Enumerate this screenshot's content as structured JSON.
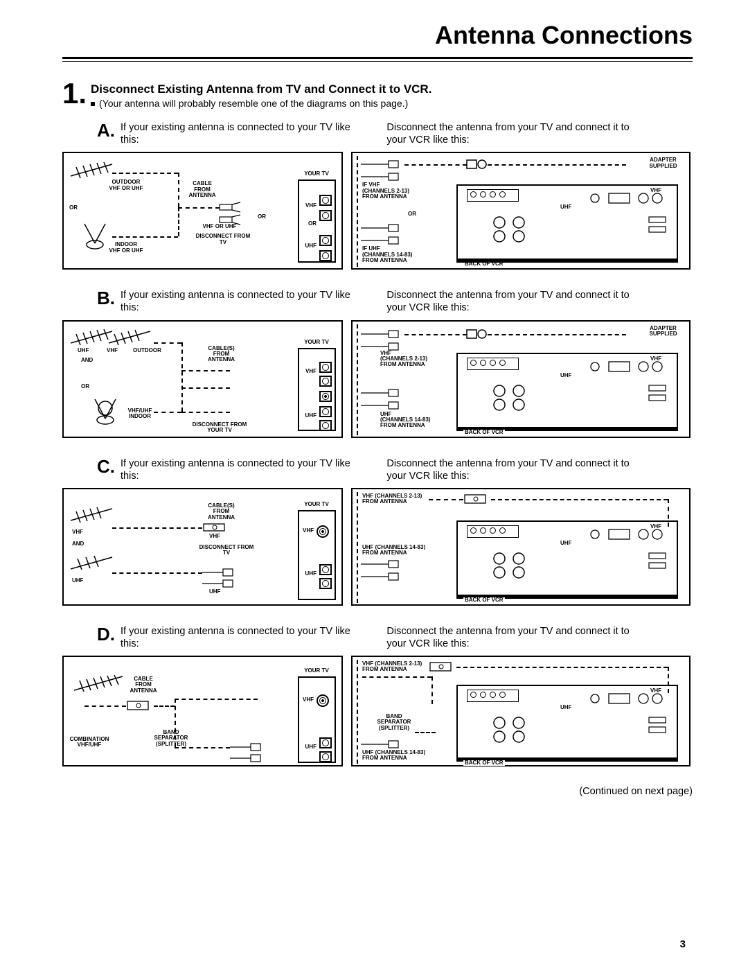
{
  "page": {
    "title": "Antenna Connections",
    "page_number": "3",
    "continued": "(Continued on next page)"
  },
  "step": {
    "number": "1",
    "title": "Disconnect Existing Antenna from TV and Connect it to VCR.",
    "subtitle": "(Your antenna will probably resemble one of the diagrams on this page.)"
  },
  "left_intro": "If your existing antenna is connected to your TV like this:",
  "right_intro": "Disconnect the antenna from your TV and connect it to your VCR like this:",
  "labels": {
    "outdoor_vhf_uhf": "OUTDOOR\nVHF OR UHF",
    "indoor_vhf_uhf": "INDOOR\nVHF OR UHF",
    "or": "OR",
    "cable_from_antenna": "CABLE\nFROM\nANTENNA",
    "cables_from_antenna": "CABLE(S)\nFROM\nANTENNA",
    "vhf_or_uhf": "VHF OR UHF",
    "disconnect_from_tv": "DISCONNECT FROM\nTV",
    "disconnect_from_your_tv": "DISCONNECT FROM\nYOUR TV",
    "your_tv": "YOUR TV",
    "vhf": "VHF",
    "uhf": "UHF",
    "and": "AND",
    "uhf_vhf": "UHF    VHF",
    "outdoor": "OUTDOOR",
    "vhf_uhf_indoor": "VHF/UHF\nINDOOR",
    "combination_vhf_uhf": "COMBINATION\nVHF/UHF",
    "band_separator": "BAND\nSEPARATOR\n(SPLITTER)",
    "if_vhf": "IF VHF\n(CHANNELS 2-13)\nFROM ANTENNA",
    "if_uhf": "IF UHF\n(CHANNELS 14-83)\nFROM ANTENNA",
    "vhf_ch": "VHF\n(CHANNELS 2-13)\nFROM ANTENNA",
    "uhf_ch": "UHF\n(CHANNELS 14-83)\nFROM ANTENNA",
    "vhf_ch2": "VHF (CHANNELS 2-13)\nFROM ANTENNA",
    "uhf_ch2": "UHF (CHANNELS 14-83)\nFROM ANTENNA",
    "adapter_supplied": "ADAPTER\nSUPPLIED",
    "back_of_vcr": "BACK OF VCR"
  },
  "scenarios": [
    {
      "letter": "A."
    },
    {
      "letter": "B."
    },
    {
      "letter": "C."
    },
    {
      "letter": "D."
    }
  ]
}
